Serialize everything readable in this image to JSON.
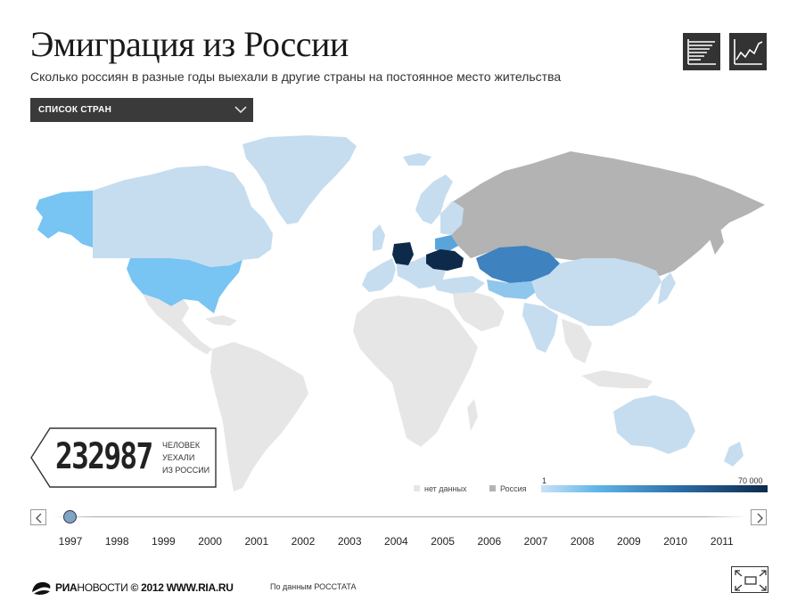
{
  "header": {
    "title": "Эмиграция из России",
    "subtitle": "Сколько россиян в разные годы выехали в другие страны на постоянное место жительства"
  },
  "view_toggle": {
    "list_icon": "bar-list-icon",
    "chart_icon": "line-chart-icon"
  },
  "dropdown": {
    "label": "СПИСОК СТРАН",
    "icon": "chevron-down-icon"
  },
  "counter": {
    "value": "232987",
    "caption_line1": "ЧЕЛОВЕК",
    "caption_line2": "УЕХАЛИ",
    "caption_line3": "ИЗ РОССИИ"
  },
  "legend": {
    "no_data": "нет данных",
    "russia": "Россия",
    "scale_min": "1",
    "scale_max": "70 000",
    "colors": {
      "no_data": "#e6e6e6",
      "russia": "#b3b3b3",
      "scale_low": "#c9e3f5",
      "scale_high": "#0d2a4a"
    }
  },
  "timeline": {
    "years": [
      "1997",
      "1998",
      "1999",
      "2000",
      "2001",
      "2002",
      "2003",
      "2004",
      "2005",
      "2006",
      "2007",
      "2008",
      "2009",
      "2010",
      "2011"
    ],
    "selected": "1997"
  },
  "footer": {
    "brand_bold": "РИА",
    "brand_thin": "НОВОСТИ",
    "copyright": "© 2012 WWW.RIA.RU",
    "source": "По данным РОССТАТА"
  }
}
